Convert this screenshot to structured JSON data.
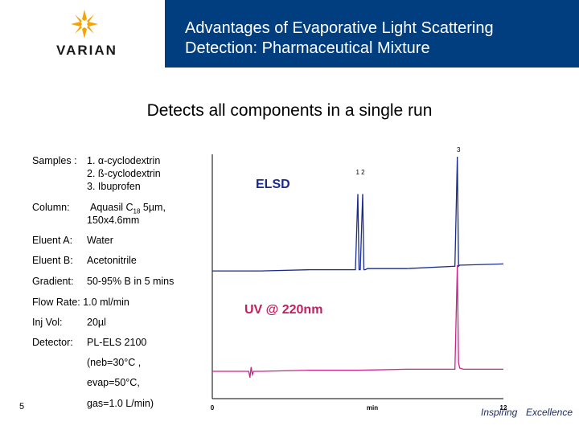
{
  "header": {
    "logo_text": "VARIAN",
    "title_line1": "Advantages of Evaporative Light Scattering",
    "title_line2": "Detection: Pharmaceutical Mixture",
    "colors": {
      "bar": "#003e80",
      "logo_accent": "#f4a300"
    }
  },
  "subtitle": "Detects all components in a single run",
  "conditions": {
    "samples_label": "Samples :",
    "samples": [
      "1. α-cyclodextrin",
      "2. ß-cyclodextrin",
      "3. Ibuprofen"
    ],
    "column_label": "Column:",
    "column_value_a": "Aquasil C",
    "column_sub": "18",
    "column_value_b": " 5µm,",
    "column_value_c": "150x4.6mm",
    "eluent_a_label": "Eluent A:",
    "eluent_a_value": "Water",
    "eluent_b_label": "Eluent B:",
    "eluent_b_value": "Acetonitrile",
    "gradient_label": "Gradient:",
    "gradient_value": "50-95% B in 5 mins",
    "flow_rate": "Flow Rate: 1.0 ml/min",
    "inj_vol_label": "Inj Vol:",
    "inj_vol_value": "20µl",
    "detector_label": "Detector:",
    "detector_value": "PL-ELS 2100",
    "detector_details": [
      "(neb=30°C ,",
      "evap=50°C,",
      "gas=1.0 L/min)"
    ]
  },
  "slide_number": "5",
  "footer_brand_a": "Inspiring",
  "footer_brand_b": "Excellence",
  "chart_data": {
    "type": "line",
    "xlabel": "min",
    "xlim": [
      0,
      12
    ],
    "x_ticks": [
      "0",
      "12"
    ],
    "grid": false,
    "series": [
      {
        "name": "ELSD",
        "color": "#1a2a8c",
        "x": [
          0,
          2,
          4,
          5.9,
          6.0,
          6.05,
          6.1,
          6.2,
          6.25,
          6.3,
          6.4,
          8,
          10.0,
          10.1,
          10.15,
          10.2,
          10.3,
          12
        ],
        "y": [
          0.02,
          0.02,
          0.03,
          0.03,
          0.68,
          0.03,
          0.03,
          0.68,
          0.03,
          0.03,
          0.04,
          0.04,
          0.06,
          1.0,
          0.06,
          0.07,
          0.07,
          0.08
        ],
        "peak_labels": [
          {
            "text": "1 2",
            "x": 6.1,
            "y": 0.85
          },
          {
            "text": "3",
            "x": 10.15,
            "y": 1.04
          }
        ]
      },
      {
        "name": "UV @ 220nm",
        "color": "#d0208a",
        "x": [
          0,
          1,
          1.5,
          1.55,
          1.6,
          1.65,
          1.7,
          2,
          4,
          6,
          8,
          10.0,
          10.1,
          10.15,
          10.2,
          10.35,
          12
        ],
        "y": [
          0.0,
          0.0,
          0.0,
          -0.06,
          0.04,
          -0.03,
          0.0,
          0.0,
          0.01,
          0.01,
          0.02,
          0.02,
          1.0,
          0.08,
          0.03,
          0.02,
          0.02
        ]
      }
    ]
  }
}
